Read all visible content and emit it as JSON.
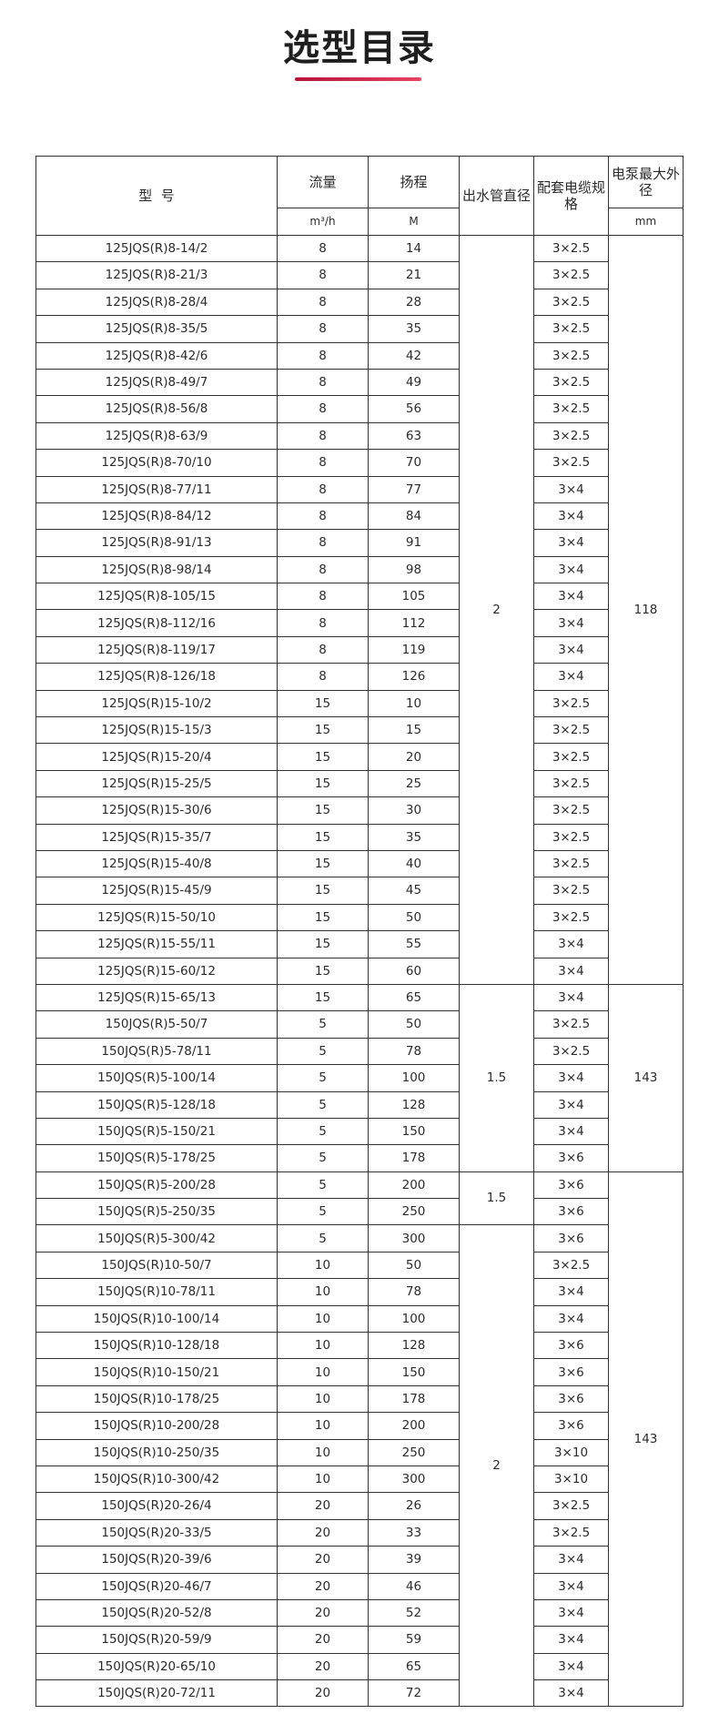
{
  "title": "选型目录",
  "colors": {
    "accent": "#d02a4c",
    "border": "#333333"
  },
  "table": {
    "headers": {
      "model": "型  号",
      "flow": "流量",
      "head": "扬程",
      "outlet": "出水管直径",
      "cable": "配套电缆规格",
      "diameter": "电泵最大外径",
      "flow_unit": "m³/h",
      "head_unit": "M",
      "diameter_unit": "mm"
    },
    "rows": [
      {
        "model": "125JQS(R)8-14/2",
        "flow": "8",
        "head": "14",
        "cable": "3×2.5"
      },
      {
        "model": "125JQS(R)8-21/3",
        "flow": "8",
        "head": "21",
        "cable": "3×2.5"
      },
      {
        "model": "125JQS(R)8-28/4",
        "flow": "8",
        "head": "28",
        "cable": "3×2.5"
      },
      {
        "model": "125JQS(R)8-35/5",
        "flow": "8",
        "head": "35",
        "cable": "3×2.5"
      },
      {
        "model": "125JQS(R)8-42/6",
        "flow": "8",
        "head": "42",
        "cable": "3×2.5"
      },
      {
        "model": "125JQS(R)8-49/7",
        "flow": "8",
        "head": "49",
        "cable": "3×2.5"
      },
      {
        "model": "125JQS(R)8-56/8",
        "flow": "8",
        "head": "56",
        "cable": "3×2.5"
      },
      {
        "model": "125JQS(R)8-63/9",
        "flow": "8",
        "head": "63",
        "cable": "3×2.5"
      },
      {
        "model": "125JQS(R)8-70/10",
        "flow": "8",
        "head": "70",
        "cable": "3×2.5"
      },
      {
        "model": "125JQS(R)8-77/11",
        "flow": "8",
        "head": "77",
        "cable": "3×4"
      },
      {
        "model": "125JQS(R)8-84/12",
        "flow": "8",
        "head": "84",
        "cable": "3×4"
      },
      {
        "model": "125JQS(R)8-91/13",
        "flow": "8",
        "head": "91",
        "cable": "3×4"
      },
      {
        "model": "125JQS(R)8-98/14",
        "flow": "8",
        "head": "98",
        "cable": "3×4"
      },
      {
        "model": "125JQS(R)8-105/15",
        "flow": "8",
        "head": "105",
        "cable": "3×4"
      },
      {
        "model": "125JQS(R)8-112/16",
        "flow": "8",
        "head": "112",
        "cable": "3×4"
      },
      {
        "model": "125JQS(R)8-119/17",
        "flow": "8",
        "head": "119",
        "cable": "3×4"
      },
      {
        "model": "125JQS(R)8-126/18",
        "flow": "8",
        "head": "126",
        "cable": "3×4"
      },
      {
        "model": "125JQS(R)15-10/2",
        "flow": "15",
        "head": "10",
        "cable": "3×2.5"
      },
      {
        "model": "125JQS(R)15-15/3",
        "flow": "15",
        "head": "15",
        "cable": "3×2.5"
      },
      {
        "model": "125JQS(R)15-20/4",
        "flow": "15",
        "head": "20",
        "cable": "3×2.5"
      },
      {
        "model": "125JQS(R)15-25/5",
        "flow": "15",
        "head": "25",
        "cable": "3×2.5"
      },
      {
        "model": "125JQS(R)15-30/6",
        "flow": "15",
        "head": "30",
        "cable": "3×2.5"
      },
      {
        "model": "125JQS(R)15-35/7",
        "flow": "15",
        "head": "35",
        "cable": "3×2.5"
      },
      {
        "model": "125JQS(R)15-40/8",
        "flow": "15",
        "head": "40",
        "cable": "3×2.5"
      },
      {
        "model": "125JQS(R)15-45/9",
        "flow": "15",
        "head": "45",
        "cable": "3×2.5"
      },
      {
        "model": "125JQS(R)15-50/10",
        "flow": "15",
        "head": "50",
        "cable": "3×2.5"
      },
      {
        "model": "125JQS(R)15-55/11",
        "flow": "15",
        "head": "55",
        "cable": "3×4"
      },
      {
        "model": "125JQS(R)15-60/12",
        "flow": "15",
        "head": "60",
        "cable": "3×4"
      },
      {
        "model": "125JQS(R)15-65/13",
        "flow": "15",
        "head": "65",
        "cable": "3×4"
      },
      {
        "model": "150JQS(R)5-50/7",
        "flow": "5",
        "head": "50",
        "cable": "3×2.5"
      },
      {
        "model": "150JQS(R)5-78/11",
        "flow": "5",
        "head": "78",
        "cable": "3×2.5"
      },
      {
        "model": "150JQS(R)5-100/14",
        "flow": "5",
        "head": "100",
        "cable": "3×4"
      },
      {
        "model": "150JQS(R)5-128/18",
        "flow": "5",
        "head": "128",
        "cable": "3×4"
      },
      {
        "model": "150JQS(R)5-150/21",
        "flow": "5",
        "head": "150",
        "cable": "3×4"
      },
      {
        "model": "150JQS(R)5-178/25",
        "flow": "5",
        "head": "178",
        "cable": "3×6"
      },
      {
        "model": "150JQS(R)5-200/28",
        "flow": "5",
        "head": "200",
        "cable": "3×6"
      },
      {
        "model": "150JQS(R)5-250/35",
        "flow": "5",
        "head": "250",
        "cable": "3×6"
      },
      {
        "model": "150JQS(R)5-300/42",
        "flow": "5",
        "head": "300",
        "cable": "3×6"
      },
      {
        "model": "150JQS(R)10-50/7",
        "flow": "10",
        "head": "50",
        "cable": "3×2.5"
      },
      {
        "model": "150JQS(R)10-78/11",
        "flow": "10",
        "head": "78",
        "cable": "3×4"
      },
      {
        "model": "150JQS(R)10-100/14",
        "flow": "10",
        "head": "100",
        "cable": "3×4"
      },
      {
        "model": "150JQS(R)10-128/18",
        "flow": "10",
        "head": "128",
        "cable": "3×6"
      },
      {
        "model": "150JQS(R)10-150/21",
        "flow": "10",
        "head": "150",
        "cable": "3×6"
      },
      {
        "model": "150JQS(R)10-178/25",
        "flow": "10",
        "head": "178",
        "cable": "3×6"
      },
      {
        "model": "150JQS(R)10-200/28",
        "flow": "10",
        "head": "200",
        "cable": "3×6"
      },
      {
        "model": "150JQS(R)10-250/35",
        "flow": "10",
        "head": "250",
        "cable": "3×10"
      },
      {
        "model": "150JQS(R)10-300/42",
        "flow": "10",
        "head": "300",
        "cable": "3×10"
      },
      {
        "model": "150JQS(R)20-26/4",
        "flow": "20",
        "head": "26",
        "cable": "3×2.5"
      },
      {
        "model": "150JQS(R)20-33/5",
        "flow": "20",
        "head": "33",
        "cable": "3×2.5"
      },
      {
        "model": "150JQS(R)20-39/6",
        "flow": "20",
        "head": "39",
        "cable": "3×4"
      },
      {
        "model": "150JQS(R)20-46/7",
        "flow": "20",
        "head": "46",
        "cable": "3×4"
      },
      {
        "model": "150JQS(R)20-52/8",
        "flow": "20",
        "head": "52",
        "cable": "3×4"
      },
      {
        "model": "150JQS(R)20-59/9",
        "flow": "20",
        "head": "59",
        "cable": "3×4"
      },
      {
        "model": "150JQS(R)20-65/10",
        "flow": "20",
        "head": "65",
        "cable": "3×4"
      },
      {
        "model": "150JQS(R)20-72/11",
        "flow": "20",
        "head": "72",
        "cable": "3×4"
      }
    ],
    "outlet_groups": [
      {
        "value": "2",
        "rows": 28
      },
      {
        "value": "1.5",
        "rows": 7
      },
      {
        "value": "1.5",
        "rows": 2
      },
      {
        "value": "2",
        "rows": 18
      }
    ],
    "diameter_groups": [
      {
        "value": "118",
        "rows": 28
      },
      {
        "value": "143",
        "rows": 7
      },
      {
        "value": "143",
        "rows": 20
      }
    ]
  }
}
